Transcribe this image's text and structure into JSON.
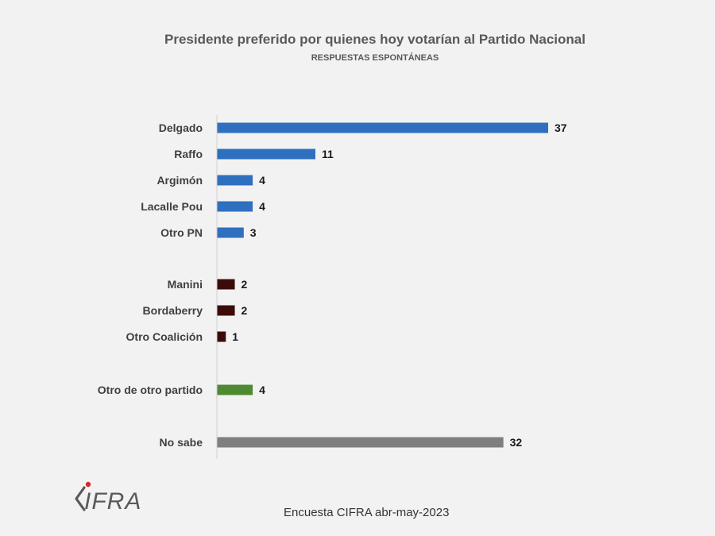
{
  "chart_data": {
    "type": "bar",
    "orientation": "horizontal",
    "title": "Presidente preferido por quienes hoy votarían al Partido Nacional",
    "subtitle": "RESPUESTAS ESPONTÁNEAS",
    "xlim": [
      0,
      37
    ],
    "grid": false,
    "categories": [
      "Delgado",
      "Raffo",
      "Argimón",
      "Lacalle Pou",
      "Otro PN",
      "Manini",
      "Bordaberry",
      "Otro Coalición",
      "Otro de otro partido",
      "No sabe"
    ],
    "values": [
      37,
      11,
      4,
      4,
      3,
      2,
      2,
      1,
      4,
      32
    ],
    "groups": [
      {
        "members": [
          0,
          1,
          2,
          3,
          4
        ],
        "color": "#2e6fc0"
      },
      {
        "members": [
          5,
          6,
          7
        ],
        "color": "#3d0a0a"
      },
      {
        "members": [
          8
        ],
        "color": "#4f8a32"
      },
      {
        "members": [
          9
        ],
        "color": "#7f7f7f"
      }
    ]
  },
  "logo": {
    "text": "CIFRA",
    "accent_color": "#d9262c"
  },
  "source_note": "Encuesta CIFRA abr-may-2023"
}
